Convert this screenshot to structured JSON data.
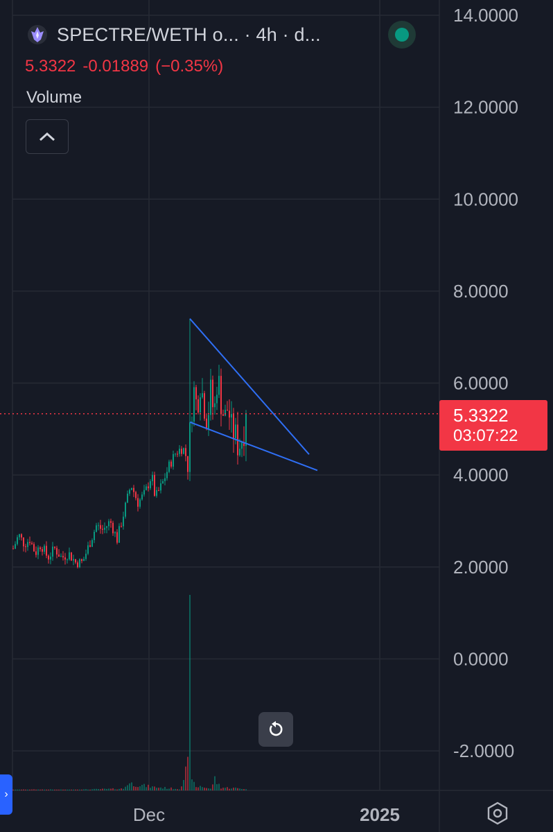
{
  "header": {
    "title": "SPECTRE/WETH o...  · 4h · d...",
    "price": "5.3322",
    "change": "-0.01889",
    "change_pct": "(−0.35%)",
    "volume_label": "Volume"
  },
  "price_tag": {
    "price": "5.3322",
    "countdown": "03:07:22"
  },
  "colors": {
    "up": "#089981",
    "down": "#f23645",
    "trendline": "#2f6ff5",
    "background": "#161a25"
  },
  "icons": {
    "logo": "spectre-logo-icon",
    "collapse": "chevron-up-icon",
    "status": "status-dot-icon",
    "reset": "reset-rotate-icon",
    "left_tab": "chevron-right-icon",
    "settings": "settings-hex-icon"
  },
  "chart_data": {
    "type": "candlestick",
    "timeframe": "4h",
    "y_axis": {
      "ticks": [
        "14.0000",
        "12.0000",
        "10.0000",
        "8.0000",
        "6.0000",
        "4.0000",
        "2.0000",
        "0.0000",
        "-2.0000"
      ],
      "range": [
        -2.6,
        14.2
      ]
    },
    "x_axis": {
      "ticks": [
        "Dec",
        "2025"
      ]
    },
    "last_price": 5.3322,
    "price_path": [
      [
        0,
        2.4
      ],
      [
        8,
        2.7
      ],
      [
        16,
        2.5
      ],
      [
        24,
        2.6
      ],
      [
        32,
        2.3
      ],
      [
        40,
        2.5
      ],
      [
        50,
        2.2
      ],
      [
        60,
        2.4
      ],
      [
        70,
        2.2
      ],
      [
        80,
        2.3
      ],
      [
        90,
        2.1
      ],
      [
        100,
        2.1
      ],
      [
        110,
        2.5
      ],
      [
        120,
        2.9
      ],
      [
        130,
        2.8
      ],
      [
        140,
        3.0
      ],
      [
        150,
        2.6
      ],
      [
        160,
        3.2
      ],
      [
        170,
        3.8
      ],
      [
        180,
        3.4
      ],
      [
        190,
        3.6
      ],
      [
        200,
        4.0
      ],
      [
        205,
        3.5
      ],
      [
        215,
        3.8
      ],
      [
        225,
        4.2
      ],
      [
        235,
        4.5
      ],
      [
        245,
        4.6
      ],
      [
        252,
        4.3
      ],
      [
        256,
        5.1
      ],
      [
        260,
        5.9
      ],
      [
        265,
        5.5
      ],
      [
        270,
        6.0
      ],
      [
        275,
        5.6
      ],
      [
        280,
        5.2
      ],
      [
        285,
        5.8
      ],
      [
        290,
        5.3
      ],
      [
        295,
        6.2
      ],
      [
        300,
        5.6
      ],
      [
        305,
        5.2
      ],
      [
        310,
        5.5
      ],
      [
        315,
        5.0
      ],
      [
        320,
        4.9
      ],
      [
        325,
        4.6
      ],
      [
        330,
        4.8
      ],
      [
        335,
        5.1
      ],
      [
        338,
        5.33
      ]
    ],
    "volume_profile": [
      [
        0,
        0.02
      ],
      [
        40,
        0.03
      ],
      [
        80,
        0.02
      ],
      [
        120,
        0.04
      ],
      [
        160,
        0.06
      ],
      [
        165,
        0.25
      ],
      [
        200,
        0.12
      ],
      [
        240,
        0.05
      ],
      [
        255,
        1.0
      ],
      [
        262,
        0.08
      ],
      [
        270,
        0.15
      ],
      [
        285,
        0.05
      ],
      [
        290,
        0.4
      ],
      [
        300,
        0.1
      ],
      [
        320,
        0.08
      ],
      [
        338,
        0.05
      ]
    ],
    "trendlines": [
      {
        "name": "",
        "points": [
          [
            256,
            7.4
          ],
          [
            428,
            4.45
          ]
        ]
      },
      {
        "name": "",
        "points": [
          [
            256,
            5.15
          ],
          [
            440,
            4.1
          ]
        ]
      }
    ]
  }
}
